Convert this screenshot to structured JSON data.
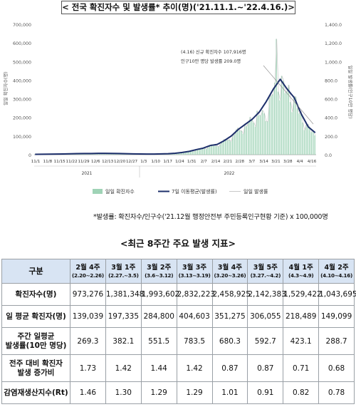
{
  "header": {
    "title": "< 전국 확진자수 및 발생률* 추이(명)('21.11.1.~'22.4.16.)>"
  },
  "chart_data": {
    "type": "bar+line",
    "y_left": {
      "min": 0,
      "max": 700000,
      "ticks": [
        "700,000",
        "600,000",
        "500,000",
        "400,000",
        "300,000",
        "200,000",
        "100,000",
        "0"
      ],
      "label": "일일 확진자수(명)"
    },
    "y_right": {
      "min": 0,
      "max": 1400,
      "ticks": [
        "1,400.0",
        "1,200.0",
        "1,000.0",
        "800.0",
        "600.0",
        "400.0",
        "200.0",
        "0.0"
      ],
      "label": "일일 발생률(인구10만 명당)"
    },
    "x_ticks": [
      "11/1",
      "11/8",
      "11/15",
      "11/22",
      "11/29",
      "12/6",
      "12/13",
      "12/20",
      "12/27",
      "1/3",
      "1/10",
      "1/17",
      "1/24",
      "1/31",
      "2/7",
      "2/14",
      "2/21",
      "2/28",
      "3/7",
      "3/14",
      "3/21",
      "3/28",
      "4/4",
      "4/16"
    ],
    "year_labels": [
      "2021",
      "2022"
    ],
    "annotation": [
      "(4.16) 신규 확진자수 107,916명",
      "인구10만 명당 발생률 209.0명"
    ],
    "legend": [
      "일일 확진자수",
      "7일 이동평균(발생률)",
      "일일 발생률"
    ],
    "daily_cases_weekly": [
      2000,
      2600,
      2900,
      3200,
      3900,
      4600,
      5500,
      6300,
      6400,
      7200,
      7300,
      6800,
      6200,
      5400,
      4500,
      3900,
      3200,
      3500,
      4300,
      5300,
      7800,
      12000,
      17800,
      27000,
      35000,
      49000,
      55000,
      75000,
      100000,
      135000,
      163000,
      190000,
      228000,
      210000,
      360000,
      404603,
      351275,
      306055,
      218489,
      149099,
      120000
    ],
    "sma7_weekly": [
      2000,
      2600,
      2900,
      3200,
      3900,
      4600,
      5500,
      6300,
      6400,
      7200,
      7300,
      6800,
      6200,
      5400,
      4500,
      3900,
      3200,
      3500,
      4300,
      5300,
      7800,
      12000,
      17800,
      27000,
      35000,
      49000,
      55000,
      75000,
      100000,
      135000,
      163000,
      190000,
      228000,
      284800,
      351000,
      404603,
      351275,
      306055,
      218489,
      149099,
      118000
    ]
  },
  "footnote": "*발생률: 확진자수/인구수('21.12월 행정안전부 주민등록인구현황 기준) x 100,000명",
  "table_title": "<최근 8주간 주요 발생 지표>",
  "table": {
    "corner": "구분",
    "columns": [
      {
        "week": "2월 4주",
        "range": "(2.20~2.26)"
      },
      {
        "week": "3월 1주",
        "range": "(2.27.~3.5)"
      },
      {
        "week": "3월 2주",
        "range": "(3.6~3.12)"
      },
      {
        "week": "3월 3주",
        "range": "(3.13~3.19)"
      },
      {
        "week": "3월 4주",
        "range": "(3.20~3.26)"
      },
      {
        "week": "3월 5주",
        "range": "(3.27.~4.2)"
      },
      {
        "week": "4월 1주",
        "range": "(4.3~4.9)"
      },
      {
        "week": "4월 2주",
        "range": "(4.10~4.16)"
      }
    ],
    "rows": [
      {
        "label": [
          "확진자수(명)"
        ],
        "values": [
          "973,276",
          "1,381,348",
          "1,993,602",
          "2,832,223",
          "2,458,925",
          "2,142,383",
          "1,529,422",
          "1,043,695"
        ]
      },
      {
        "label": [
          "일 평균 확진자(명)"
        ],
        "values": [
          "139,039",
          "197,335",
          "284,800",
          "404,603",
          "351,275",
          "306,055",
          "218,489",
          "149,099"
        ]
      },
      {
        "label": [
          "주간 일평균",
          "발생률(10만 명당)"
        ],
        "values": [
          "269.3",
          "382.1",
          "551.5",
          "783.5",
          "680.3",
          "592.7",
          "423.1",
          "288.7"
        ]
      },
      {
        "label": [
          "전주 대비 확진자",
          "발생 증가비"
        ],
        "values": [
          "1.73",
          "1.42",
          "1.44",
          "1.42",
          "0.87",
          "0.87",
          "0.71",
          "0.68"
        ]
      },
      {
        "label": [
          "감염재생산지수(Rt)"
        ],
        "values": [
          "1.46",
          "1.30",
          "1.29",
          "1.29",
          "1.01",
          "0.91",
          "0.82",
          "0.78"
        ]
      }
    ]
  }
}
